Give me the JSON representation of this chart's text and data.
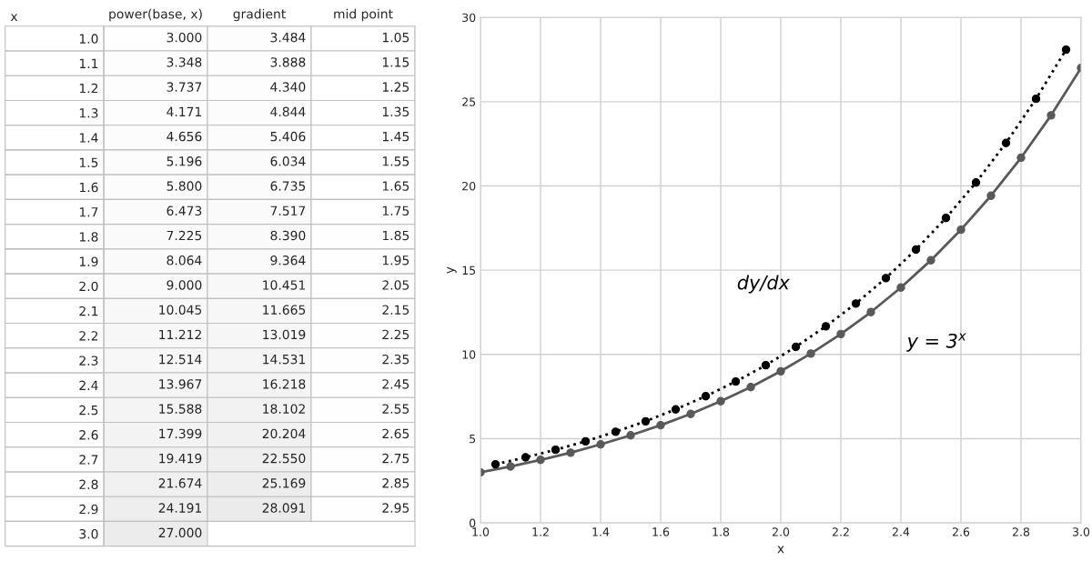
{
  "chart_data": [
    {
      "type": "heatmap",
      "ylabel": "x",
      "categories": [
        "power(base, x)",
        "gradient",
        "mid point"
      ],
      "y_categories": [
        "1.0",
        "1.1",
        "1.2",
        "1.3",
        "1.4",
        "1.5",
        "1.6",
        "1.7",
        "1.8",
        "1.9",
        "2.0",
        "2.1",
        "2.2",
        "2.3",
        "2.4",
        "2.5",
        "2.6",
        "2.7",
        "2.8",
        "2.9",
        "3.0"
      ],
      "cells": [
        [
          3.0,
          3.484,
          1.05
        ],
        [
          3.348,
          3.888,
          1.15
        ],
        [
          3.737,
          4.34,
          1.25
        ],
        [
          4.171,
          4.844,
          1.35
        ],
        [
          4.656,
          5.406,
          1.45
        ],
        [
          5.196,
          6.034,
          1.55
        ],
        [
          5.8,
          6.735,
          1.65
        ],
        [
          6.473,
          7.517,
          1.75
        ],
        [
          7.225,
          8.39,
          1.85
        ],
        [
          8.064,
          9.364,
          1.95
        ],
        [
          9.0,
          10.451,
          2.05
        ],
        [
          10.045,
          11.665,
          2.15
        ],
        [
          11.212,
          13.019,
          2.25
        ],
        [
          12.514,
          14.531,
          2.35
        ],
        [
          13.967,
          16.218,
          2.45
        ],
        [
          15.588,
          18.102,
          2.55
        ],
        [
          17.399,
          20.204,
          2.65
        ],
        [
          19.419,
          22.55,
          2.75
        ],
        [
          21.674,
          25.169,
          2.85
        ],
        [
          24.191,
          28.091,
          2.95
        ],
        [
          27.0,
          null,
          null
        ]
      ],
      "cell_labels": [
        [
          "3.000",
          "3.484",
          "1.05"
        ],
        [
          "3.348",
          "3.888",
          "1.15"
        ],
        [
          "3.737",
          "4.340",
          "1.25"
        ],
        [
          "4.171",
          "4.844",
          "1.35"
        ],
        [
          "4.656",
          "5.406",
          "1.45"
        ],
        [
          "5.196",
          "6.034",
          "1.55"
        ],
        [
          "5.800",
          "6.735",
          "1.65"
        ],
        [
          "6.473",
          "7.517",
          "1.75"
        ],
        [
          "7.225",
          "8.390",
          "1.85"
        ],
        [
          "8.064",
          "9.364",
          "1.95"
        ],
        [
          "9.000",
          "10.451",
          "2.05"
        ],
        [
          "10.045",
          "11.665",
          "2.15"
        ],
        [
          "11.212",
          "13.019",
          "2.25"
        ],
        [
          "12.514",
          "14.531",
          "2.35"
        ],
        [
          "13.967",
          "16.218",
          "2.45"
        ],
        [
          "15.588",
          "18.102",
          "2.55"
        ],
        [
          "17.399",
          "20.204",
          "2.65"
        ],
        [
          "19.419",
          "22.550",
          "2.75"
        ],
        [
          "21.674",
          "25.169",
          "2.85"
        ],
        [
          "24.191",
          "28.091",
          "2.95"
        ],
        [
          "27.000",
          null,
          null
        ]
      ]
    },
    {
      "type": "line",
      "xlabel": "x",
      "ylabel": "y",
      "xlim": [
        1.0,
        3.0
      ],
      "xticks": [
        {
          "value": 1.0,
          "label": "1.0"
        },
        {
          "value": 1.2,
          "label": "1.2"
        },
        {
          "value": 1.4,
          "label": "1.4"
        },
        {
          "value": 1.6,
          "label": "1.6"
        },
        {
          "value": 1.8,
          "label": "1.8"
        },
        {
          "value": 2.0,
          "label": "2.0"
        },
        {
          "value": 2.2,
          "label": "2.2"
        },
        {
          "value": 2.4,
          "label": "2.4"
        },
        {
          "value": 2.6,
          "label": "2.6"
        },
        {
          "value": 2.8,
          "label": "2.8"
        },
        {
          "value": 3.0,
          "label": "3.0"
        }
      ],
      "ylim": [
        0,
        30
      ],
      "yticks": [
        0,
        5,
        10,
        15,
        20,
        25,
        30
      ],
      "grid": true,
      "legend": false,
      "series": [
        {
          "name": "y = 3$^{x}$",
          "color": "#595959",
          "marker": "circle",
          "line_style": "solid",
          "x": [
            1.0,
            1.1,
            1.2,
            1.3,
            1.4,
            1.5,
            1.6,
            1.7,
            1.8,
            1.9,
            2.0,
            2.1,
            2.2,
            2.3,
            2.4,
            2.5,
            2.6,
            2.7,
            2.8,
            2.9,
            3.0
          ],
          "values": [
            3.0,
            3.35,
            3.74,
            4.17,
            4.66,
            5.2,
            5.8,
            6.47,
            7.22,
            8.06,
            9.0,
            10.05,
            11.21,
            12.51,
            13.97,
            15.59,
            17.4,
            19.42,
            21.67,
            24.19,
            27.0
          ]
        },
        {
          "name": "dy/dx",
          "color": "#000000",
          "marker": "circle",
          "line_style": "dotted",
          "x": [
            1.05,
            1.15,
            1.25,
            1.35,
            1.45,
            1.55,
            1.65,
            1.75,
            1.85,
            1.95,
            2.05,
            2.15,
            2.25,
            2.35,
            2.45,
            2.55,
            2.65,
            2.75,
            2.85,
            2.95
          ],
          "values": [
            3.48,
            3.89,
            4.34,
            4.84,
            5.41,
            6.03,
            6.74,
            7.52,
            8.39,
            9.36,
            10.45,
            11.67,
            13.02,
            14.53,
            16.22,
            18.1,
            20.2,
            22.55,
            25.17,
            28.09
          ]
        }
      ]
    }
  ]
}
